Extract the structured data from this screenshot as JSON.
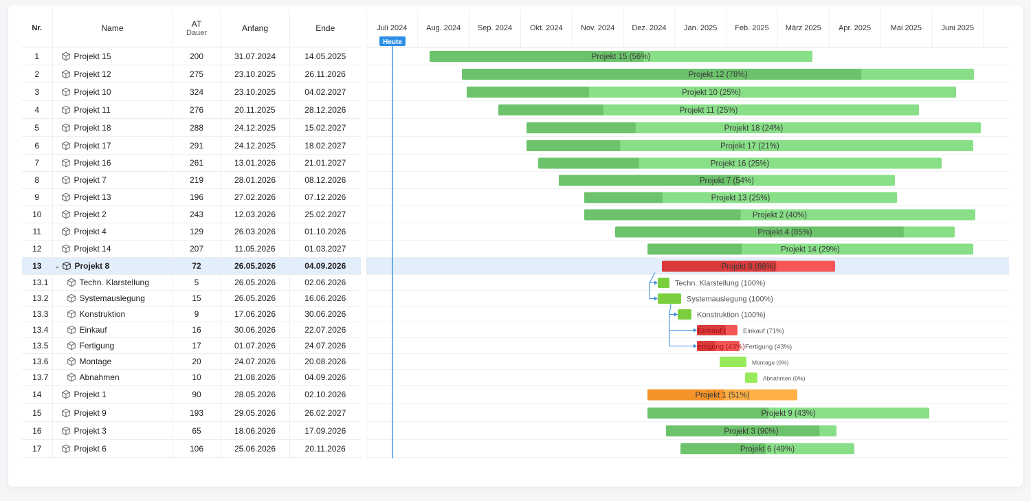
{
  "columns": {
    "nr": "Nr.",
    "name": "Name",
    "at_top": "AT",
    "at_bottom": "Dauer",
    "start": "Anfang",
    "end": "Ende"
  },
  "today_label": "Heute",
  "colors": {
    "green": "#6cc36b",
    "red": "#da3a3a",
    "orange": "#f5942a",
    "sub_green": "#7bcf3e",
    "highlight": "#e3eefb",
    "arrow": "#3b8fe0"
  },
  "rows": [
    {
      "nr": "1",
      "name": "Projekt 15",
      "at": "200",
      "start": "31.07.2024",
      "end": "14.05.2025",
      "bar_label": "Projekt 15 (56%)",
      "progress": 56,
      "status": "green"
    },
    {
      "nr": "2",
      "name": "Projekt 12",
      "at": "275",
      "start": "23.10.2025",
      "end": "26.11.2026",
      "bar_label": "Projekt 12 (78%)",
      "progress": 78,
      "status": "green"
    },
    {
      "nr": "3",
      "name": "Projekt 10",
      "at": "324",
      "start": "23.10.2025",
      "end": "04.02.2027",
      "bar_label": "Projekt 10 (25%)",
      "progress": 25,
      "status": "green"
    },
    {
      "nr": "4",
      "name": "Projekt 11",
      "at": "276",
      "start": "20.11.2025",
      "end": "28.12.2026",
      "bar_label": "Projekt 11 (25%)",
      "progress": 25,
      "status": "green"
    },
    {
      "nr": "5",
      "name": "Projekt 18",
      "at": "288",
      "start": "24.12.2025",
      "end": "15.02.2027",
      "bar_label": "Projekt 18 (24%)",
      "progress": 24,
      "status": "green"
    },
    {
      "nr": "6",
      "name": "Projekt 17",
      "at": "291",
      "start": "24.12.2025",
      "end": "18.02.2027",
      "bar_label": "Projekt 17 (21%)",
      "progress": 21,
      "status": "green"
    },
    {
      "nr": "7",
      "name": "Projekt 16",
      "at": "261",
      "start": "13.01.2026",
      "end": "21.01.2027",
      "bar_label": "Projekt 16 (25%)",
      "progress": 25,
      "status": "green"
    },
    {
      "nr": "8",
      "name": "Projekt 7",
      "at": "219",
      "start": "28.01.2026",
      "end": "08.12.2026",
      "bar_label": "Projekt 7 (54%)",
      "progress": 54,
      "status": "green"
    },
    {
      "nr": "9",
      "name": "Projekt 13",
      "at": "196",
      "start": "27.02.2026",
      "end": "07.12.2026",
      "bar_label": "Projekt 13 (25%)",
      "progress": 25,
      "status": "green"
    },
    {
      "nr": "10",
      "name": "Projekt 2",
      "at": "243",
      "start": "12.03.2026",
      "end": "25.02.2027",
      "bar_label": "Projekt 2 (40%)",
      "progress": 40,
      "status": "green"
    },
    {
      "nr": "11",
      "name": "Projekt 4",
      "at": "129",
      "start": "26.03.2026",
      "end": "01.10.2026",
      "bar_label": "Projekt 4 (85%)",
      "progress": 85,
      "status": "green"
    },
    {
      "nr": "12",
      "name": "Projekt 14",
      "at": "207",
      "start": "11.05.2026",
      "end": "01.03.2027",
      "bar_label": "Projekt 14 (29%)",
      "progress": 29,
      "status": "green"
    },
    {
      "nr": "13",
      "name": "Projekt 8",
      "at": "72",
      "start": "26.05.2026",
      "end": "04.09.2026",
      "bar_label": "Projekt 8 (66%)",
      "progress": 66,
      "status": "red",
      "selected": true,
      "expanded": true
    },
    {
      "nr": "13.1",
      "name": "Techn. Klarstellung",
      "at": "5",
      "start": "26.05.2026",
      "end": "02.06.2026",
      "bar_label": "Techn. Klarstellung (100%)",
      "progress": 100,
      "status": "sub_green",
      "child": true
    },
    {
      "nr": "13.2",
      "name": "Systemauslegung",
      "at": "15",
      "start": "26.05.2026",
      "end": "16.06.2026",
      "bar_label": "Systemauslegung (100%)",
      "progress": 100,
      "status": "sub_green",
      "child": true
    },
    {
      "nr": "13.3",
      "name": "Konstruktion",
      "at": "9",
      "start": "17.06.2026",
      "end": "30.06.2026",
      "bar_label": "Konstruktion (100%)",
      "progress": 100,
      "status": "sub_green",
      "child": true
    },
    {
      "nr": "13.4",
      "name": "Einkauf",
      "at": "16",
      "start": "30.06.2026",
      "end": "22.07.2026",
      "bar_label": "Einkauf (71%)",
      "inner_label": "Einkauf (",
      "progress": 71,
      "status": "red",
      "child": true
    },
    {
      "nr": "13.5",
      "name": "Fertigung",
      "at": "17",
      "start": "01.07.2026",
      "end": "24.07.2026",
      "bar_label": "Fertigung (43%)",
      "inner_label": "ertigung (43%)",
      "progress": 43,
      "status": "red",
      "child": true
    },
    {
      "nr": "13.6",
      "name": "Montage",
      "at": "20",
      "start": "24.07.2026",
      "end": "20.08.2026",
      "bar_label": "Montage (0%)",
      "progress": 0,
      "status": "sub_green",
      "child": true
    },
    {
      "nr": "13.7",
      "name": "Abnahmen",
      "at": "10",
      "start": "21.08.2026",
      "end": "04.09.2026",
      "bar_label": "Abnahmen (0%)",
      "progress": 0,
      "status": "sub_green",
      "child": true
    },
    {
      "nr": "14",
      "name": "Projekt 1",
      "at": "90",
      "start": "28.05.2026",
      "end": "02.10.2026",
      "bar_label": "Projekt 1 (51%)",
      "progress": 51,
      "status": "orange"
    },
    {
      "nr": "15",
      "name": "Projekt 9",
      "at": "193",
      "start": "29.05.2026",
      "end": "26.02.2027",
      "bar_label": "Projekt 9 (43%)",
      "progress": 43,
      "status": "green"
    },
    {
      "nr": "16",
      "name": "Projekt 3",
      "at": "65",
      "start": "18.06.2026",
      "end": "17.09.2026",
      "bar_label": "Projekt 3 (90%)",
      "progress": 90,
      "status": "green"
    },
    {
      "nr": "17",
      "name": "Projekt 6",
      "at": "106",
      "start": "25.06.2026",
      "end": "20.11.2026",
      "bar_label": "Projekt 6 (49%)",
      "progress": 49,
      "status": "green"
    }
  ],
  "months": [
    "Juli 2024",
    "Aug. 2024",
    "Sep. 2024",
    "Okt. 2024",
    "Nov. 2024",
    "Dez. 2024",
    "Jan. 2025",
    "Feb. 2025",
    "März 2025",
    "Apr. 2025",
    "Mai 2025",
    "Juni 2025"
  ]
}
